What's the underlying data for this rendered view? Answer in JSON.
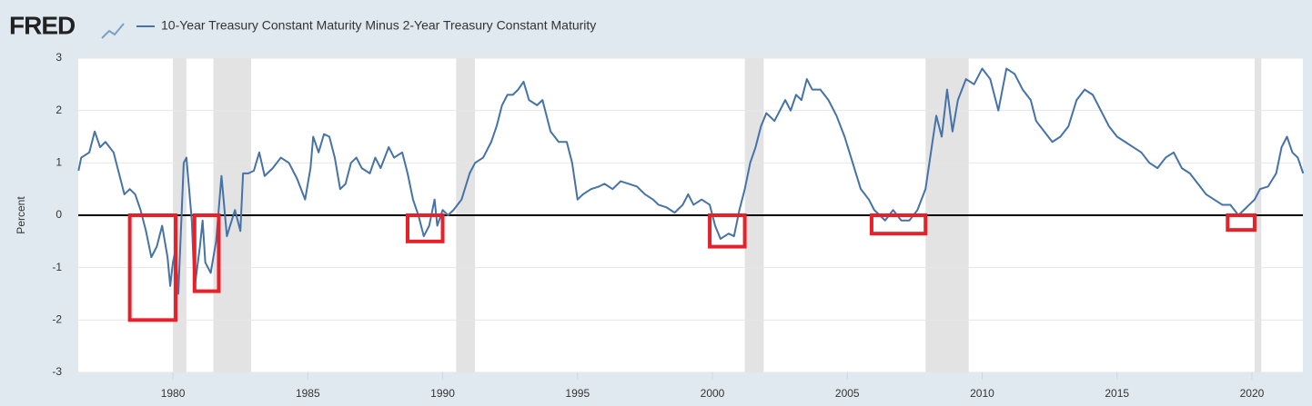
{
  "chart_data": {
    "type": "line",
    "logo": "FRED",
    "ylabel": "Percent",
    "xlim": [
      1976.49,
      2021.89
    ],
    "ylim": [
      -3,
      3
    ],
    "xticks": [
      1980,
      1985,
      1990,
      1995,
      2000,
      2005,
      2010,
      2015,
      2020
    ],
    "yticks": [
      -3,
      -2,
      -1,
      0,
      1,
      2,
      3
    ],
    "grid": true,
    "recessions": [
      [
        1980.0,
        1980.5
      ],
      [
        1981.5,
        1982.9
      ],
      [
        1990.5,
        1991.2
      ],
      [
        2001.2,
        2001.9
      ],
      [
        2007.9,
        2009.5
      ],
      [
        2020.1,
        2020.35
      ]
    ],
    "highlights": [
      [
        1978.4,
        1980.1,
        0,
        -2
      ],
      [
        1980.8,
        1981.7,
        0,
        -1.45
      ],
      [
        1988.7,
        1990.0,
        0,
        -0.5
      ],
      [
        1999.9,
        2001.2,
        0,
        -0.6
      ],
      [
        2005.9,
        2007.9,
        0,
        -0.35
      ],
      [
        2019.1,
        2020.1,
        0,
        -0.28
      ]
    ],
    "series": [
      {
        "name": "10-Year Treasury Constant Maturity Minus 2-Year Treasury Constant Maturity",
        "color": "#4572a7",
        "x": [
          1976.5,
          1976.6,
          1976.9,
          1977.1,
          1977.3,
          1977.5,
          1977.8,
          1978.0,
          1978.2,
          1978.4,
          1978.6,
          1978.8,
          1979.0,
          1979.2,
          1979.4,
          1979.6,
          1979.8,
          1979.9,
          1980.0,
          1980.1,
          1980.2,
          1980.4,
          1980.5,
          1980.7,
          1980.8,
          1981.0,
          1981.1,
          1981.2,
          1981.4,
          1981.6,
          1981.8,
          1982.0,
          1982.3,
          1982.5,
          1982.6,
          1982.8,
          1983.0,
          1983.2,
          1983.4,
          1983.7,
          1984.0,
          1984.3,
          1984.6,
          1984.9,
          1985.1,
          1985.2,
          1985.4,
          1985.6,
          1985.8,
          1986.0,
          1986.2,
          1986.4,
          1986.6,
          1986.8,
          1987.0,
          1987.3,
          1987.5,
          1987.7,
          1988.0,
          1988.2,
          1988.5,
          1988.7,
          1988.9,
          1989.1,
          1989.3,
          1989.5,
          1989.7,
          1989.8,
          1990.0,
          1990.2,
          1990.4,
          1990.7,
          1991.0,
          1991.2,
          1991.5,
          1991.8,
          1992.0,
          1992.2,
          1992.4,
          1992.6,
          1992.8,
          1993.0,
          1993.2,
          1993.5,
          1993.7,
          1994.0,
          1994.3,
          1994.6,
          1994.8,
          1995.0,
          1995.2,
          1995.5,
          1995.8,
          1996.0,
          1996.3,
          1996.6,
          1996.9,
          1997.2,
          1997.5,
          1997.8,
          1998.0,
          1998.3,
          1998.6,
          1998.9,
          1999.1,
          1999.3,
          1999.6,
          1999.9,
          2000.1,
          2000.3,
          2000.6,
          2000.8,
          2001.0,
          2001.2,
          2001.4,
          2001.6,
          2001.8,
          2002.0,
          2002.3,
          2002.5,
          2002.7,
          2002.9,
          2003.1,
          2003.3,
          2003.5,
          2003.7,
          2004.0,
          2004.3,
          2004.6,
          2004.9,
          2005.2,
          2005.5,
          2005.8,
          2006.0,
          2006.2,
          2006.4,
          2006.7,
          2007.0,
          2007.3,
          2007.6,
          2007.9,
          2008.1,
          2008.3,
          2008.5,
          2008.7,
          2008.9,
          2009.1,
          2009.4,
          2009.7,
          2010.0,
          2010.3,
          2010.6,
          2010.9,
          2011.2,
          2011.5,
          2011.8,
          2012.0,
          2012.3,
          2012.6,
          2012.9,
          2013.2,
          2013.5,
          2013.8,
          2014.1,
          2014.4,
          2014.7,
          2015.0,
          2015.3,
          2015.6,
          2015.9,
          2016.2,
          2016.5,
          2016.8,
          2017.1,
          2017.4,
          2017.7,
          2018.0,
          2018.3,
          2018.6,
          2018.9,
          2019.2,
          2019.5,
          2019.7,
          2019.9,
          2020.1,
          2020.3,
          2020.6,
          2020.9,
          2021.1,
          2021.3,
          2021.5,
          2021.7,
          2021.9
        ],
        "values": [
          0.85,
          1.1,
          1.2,
          1.6,
          1.3,
          1.4,
          1.2,
          0.8,
          0.4,
          0.5,
          0.4,
          0.1,
          -0.3,
          -0.8,
          -0.6,
          -0.2,
          -0.8,
          -1.35,
          -0.9,
          -0.65,
          -1.5,
          1.0,
          1.1,
          -0.1,
          -1.4,
          -0.6,
          -0.1,
          -0.9,
          -1.1,
          -0.5,
          0.75,
          -0.4,
          0.1,
          -0.3,
          0.8,
          0.8,
          0.85,
          1.2,
          0.75,
          0.9,
          1.1,
          1.0,
          0.7,
          0.3,
          0.9,
          1.5,
          1.2,
          1.55,
          1.5,
          1.1,
          0.5,
          0.6,
          1.0,
          1.1,
          0.9,
          0.8,
          1.1,
          0.9,
          1.3,
          1.1,
          1.2,
          0.8,
          0.3,
          0.0,
          -0.4,
          -0.2,
          0.3,
          -0.2,
          0.1,
          0.0,
          0.1,
          0.3,
          0.8,
          1.0,
          1.1,
          1.4,
          1.7,
          2.1,
          2.3,
          2.3,
          2.4,
          2.55,
          2.2,
          2.1,
          2.2,
          1.6,
          1.4,
          1.4,
          1.0,
          0.3,
          0.4,
          0.5,
          0.55,
          0.6,
          0.5,
          0.65,
          0.6,
          0.55,
          0.4,
          0.3,
          0.2,
          0.15,
          0.05,
          0.2,
          0.4,
          0.2,
          0.3,
          0.2,
          -0.2,
          -0.45,
          -0.35,
          -0.4,
          0.1,
          0.5,
          1.0,
          1.3,
          1.7,
          1.95,
          1.8,
          2.0,
          2.2,
          2.0,
          2.3,
          2.2,
          2.6,
          2.4,
          2.4,
          2.2,
          1.9,
          1.5,
          1.0,
          0.5,
          0.3,
          0.1,
          0.0,
          -0.1,
          0.1,
          -0.1,
          -0.1,
          0.1,
          0.5,
          1.2,
          1.9,
          1.5,
          2.4,
          1.6,
          2.2,
          2.6,
          2.5,
          2.8,
          2.6,
          2.0,
          2.8,
          2.7,
          2.4,
          2.2,
          1.8,
          1.6,
          1.4,
          1.5,
          1.7,
          2.2,
          2.4,
          2.3,
          2.0,
          1.7,
          1.5,
          1.4,
          1.3,
          1.2,
          1.0,
          0.9,
          1.1,
          1.2,
          0.9,
          0.8,
          0.6,
          0.4,
          0.3,
          0.2,
          0.2,
          0.0,
          0.1,
          0.2,
          0.3,
          0.5,
          0.55,
          0.8,
          1.3,
          1.5,
          1.2,
          1.1,
          0.8
        ]
      }
    ]
  }
}
